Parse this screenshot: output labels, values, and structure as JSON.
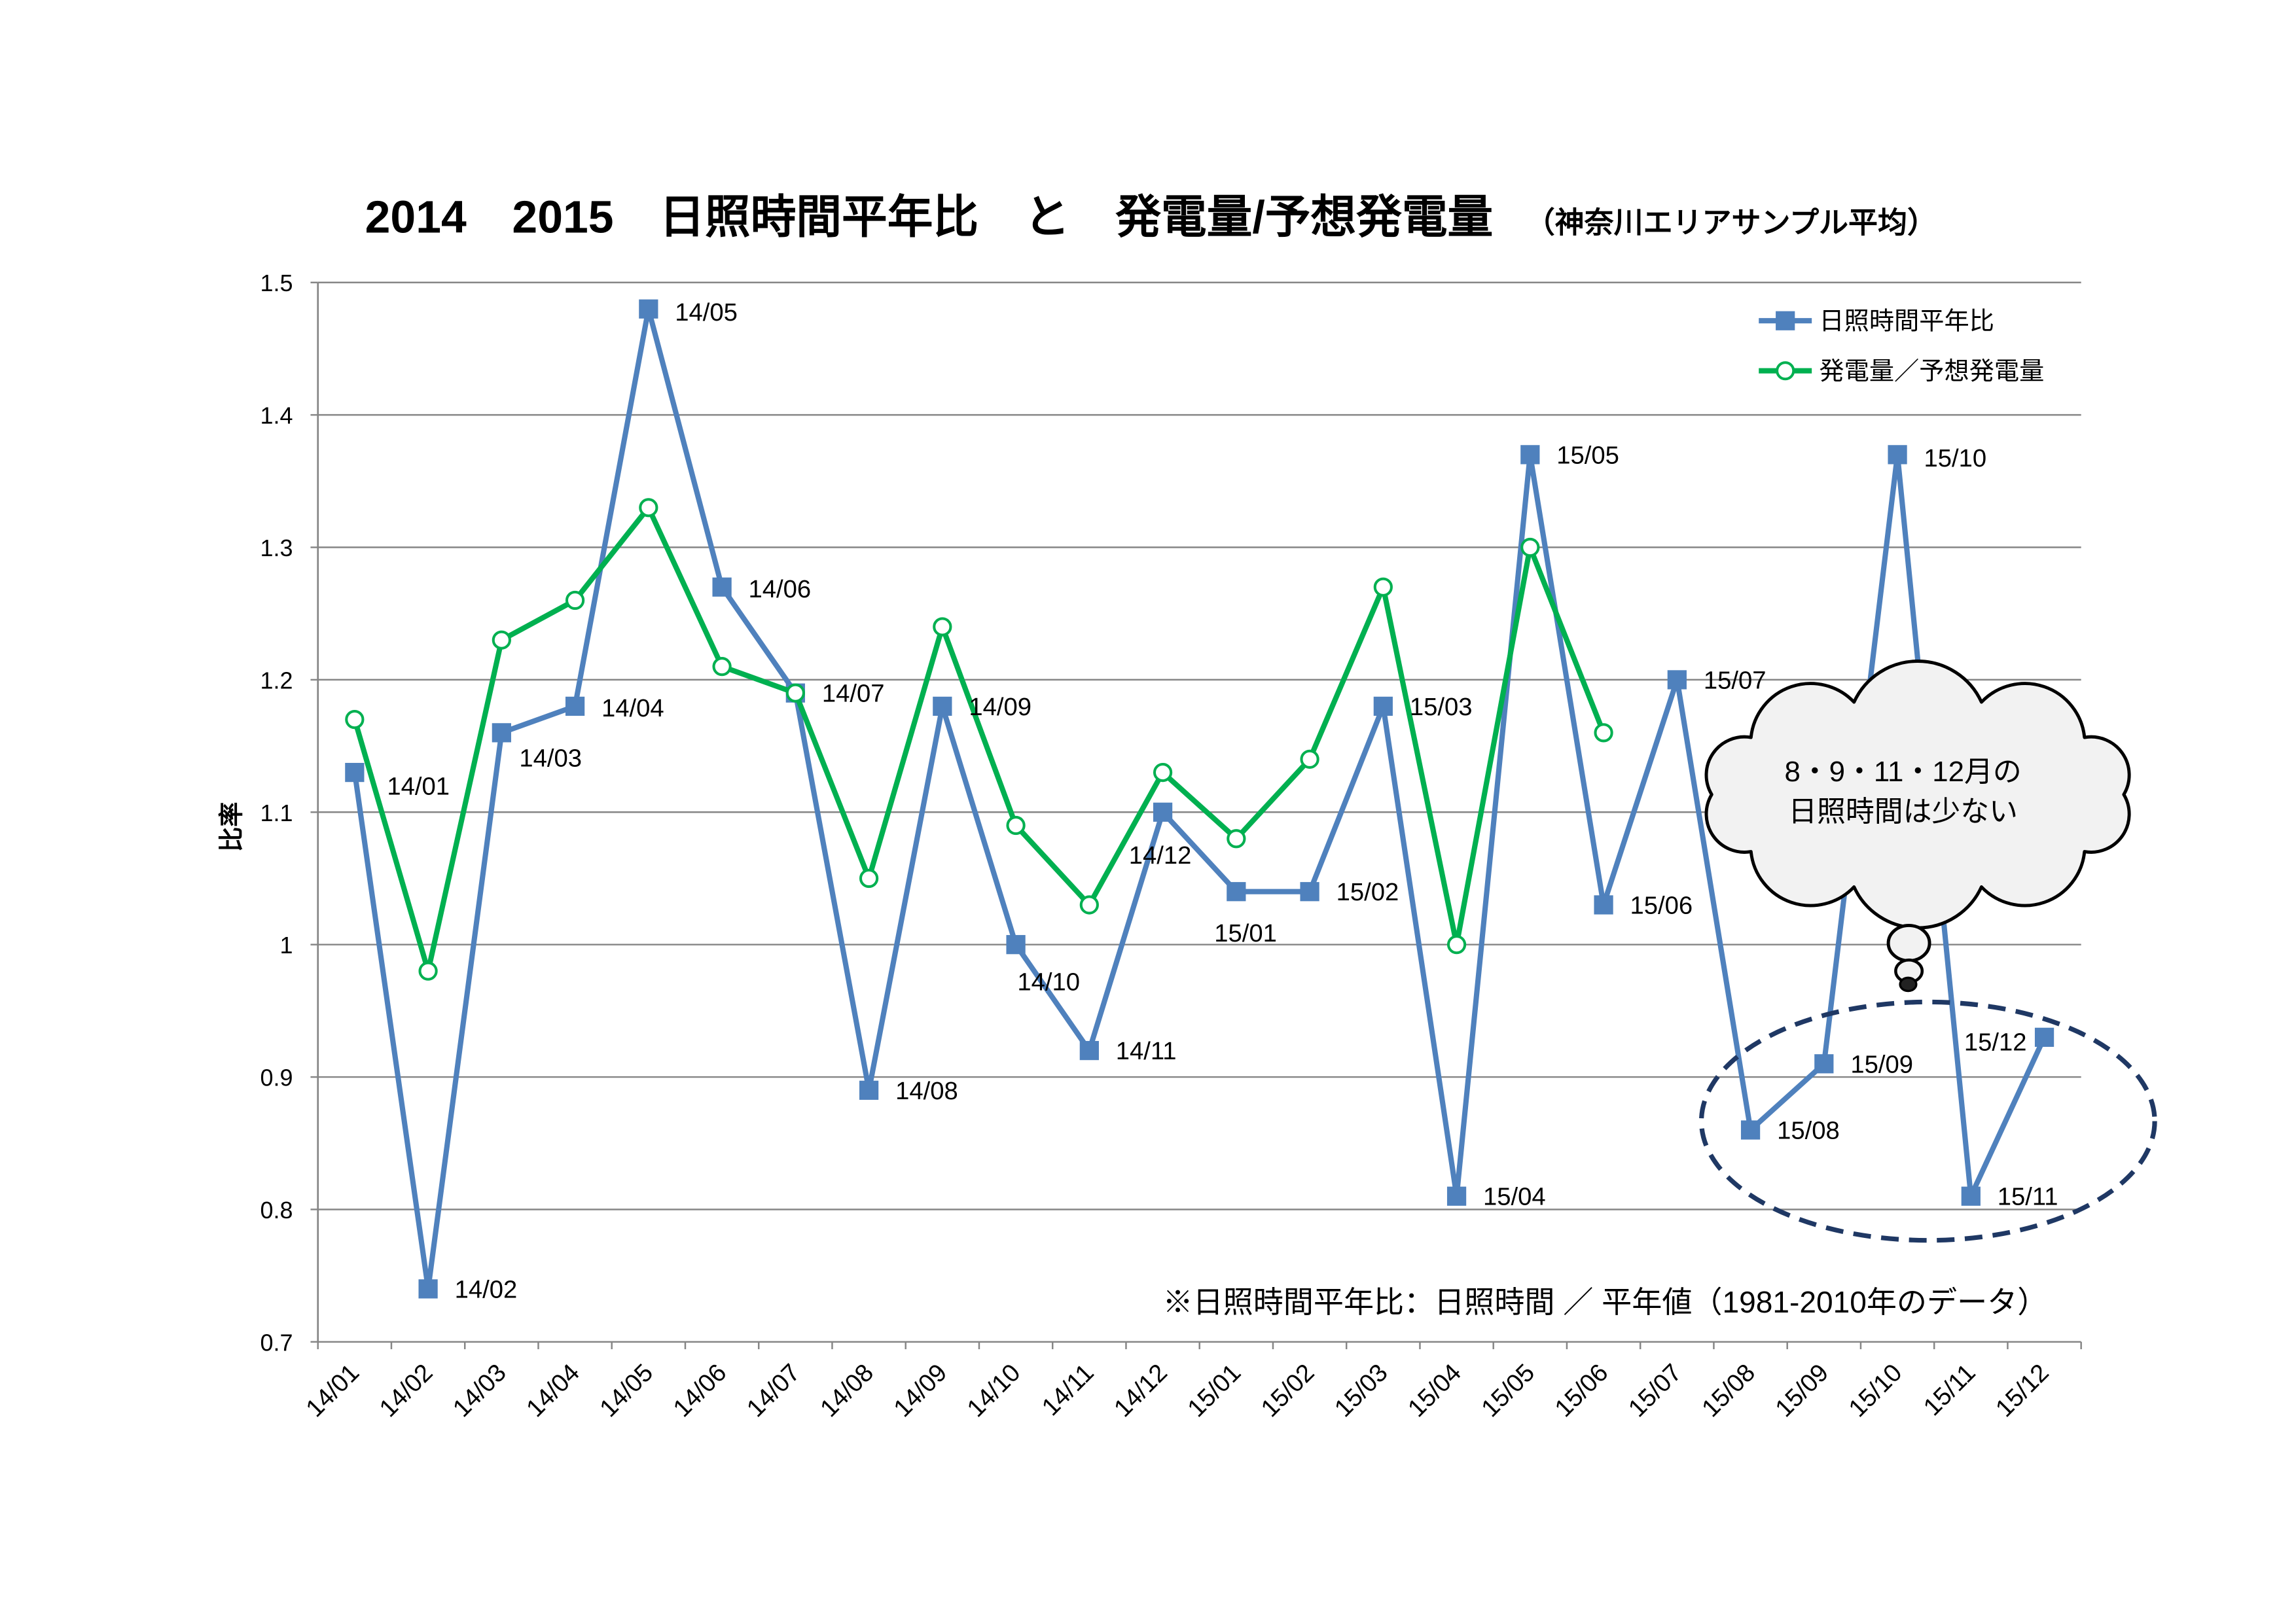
{
  "chart_data": {
    "type": "line",
    "title": "2014　2015　日照時間平年比　と　発電量/予想発電量",
    "subtitle": "（神奈川エリアサンプル平均）",
    "xlabel": "",
    "ylabel": "比率",
    "ylim": [
      0.7,
      1.5
    ],
    "ytick_labels": [
      "1.5",
      "1.4",
      "1.3",
      "1.2",
      "1.1",
      "1",
      "0.9",
      "0.8",
      "0.7"
    ],
    "grid": true,
    "legend_position": "top-right",
    "categories": [
      "14/01",
      "14/02",
      "14/03",
      "14/04",
      "14/05",
      "14/06",
      "14/07",
      "14/08",
      "14/09",
      "14/10",
      "14/11",
      "14/12",
      "15/01",
      "15/02",
      "15/03",
      "15/04",
      "15/05",
      "15/06",
      "15/07",
      "15/08",
      "15/09",
      "15/10",
      "15/11",
      "15/12"
    ],
    "series": [
      {
        "name": "日照時間平年比",
        "color": "#4f81bd",
        "marker": "square",
        "data_labels": "category",
        "values": [
          1.13,
          0.74,
          1.16,
          1.18,
          1.48,
          1.27,
          1.19,
          0.89,
          1.18,
          1.0,
          0.92,
          1.1,
          1.04,
          1.04,
          1.18,
          0.81,
          1.37,
          1.03,
          1.2,
          0.86,
          0.91,
          1.37,
          0.81,
          0.93
        ]
      },
      {
        "name": "発電量／予想発電量",
        "color": "#00b050",
        "marker": "circle",
        "values": [
          1.17,
          0.98,
          1.23,
          1.26,
          1.33,
          1.21,
          1.19,
          1.05,
          1.24,
          1.09,
          1.03,
          1.13,
          1.08,
          1.14,
          1.27,
          1.0,
          1.3,
          1.16,
          null,
          null,
          null,
          null,
          null,
          null
        ]
      }
    ],
    "annotations": {
      "note": "※日照時間平年比：日照時間 ／ 平年値（1981-2010年のデータ）",
      "callout": [
        "8・9・11・12月の",
        "日照時間は少ない"
      ]
    }
  }
}
